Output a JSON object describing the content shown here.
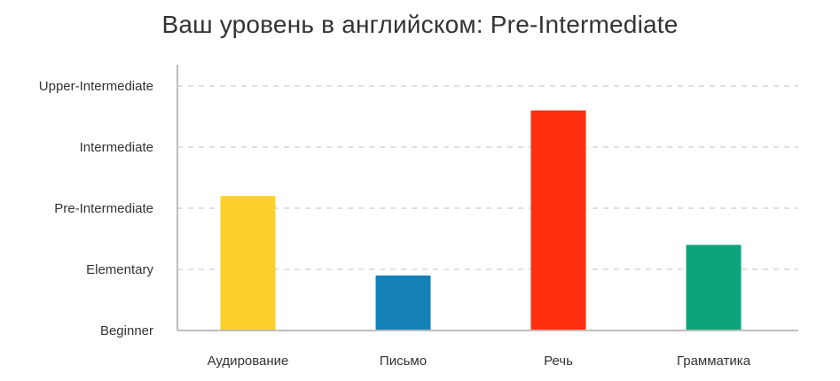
{
  "chart_data": {
    "type": "bar",
    "title": "Ваш уровень в английском: Pre-Intermediate",
    "xlabel": "",
    "ylabel": "",
    "y_levels": [
      "Beginner",
      "Elementary",
      "Pre-Intermediate",
      "Intermediate",
      "Upper-Intermediate"
    ],
    "ylim": [
      0,
      4
    ],
    "categories": [
      "Аудирование",
      "Письмо",
      "Речь",
      "Грамматика"
    ],
    "values": [
      2.2,
      0.9,
      3.6,
      1.4
    ],
    "colors": [
      "#fdd02b",
      "#1580b8",
      "#ff2e0e",
      "#0ea47a"
    ],
    "grid": true,
    "legend": "none"
  }
}
